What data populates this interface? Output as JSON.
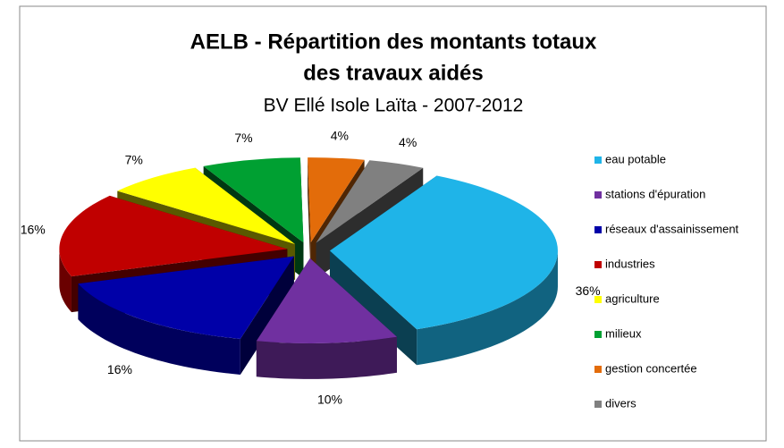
{
  "chart_data": {
    "type": "pie3d",
    "title": [
      "AELB - Répartition des montants totaux",
      "des travaux aidés"
    ],
    "subtitle": "BV Ellé Isole Laïta - 2007-2012",
    "categories": [
      "eau potable",
      "stations d'épuration",
      "réseaux d'assainissement",
      "industries",
      "agriculture",
      "milieux",
      "gestion concertée",
      "divers"
    ],
    "values": [
      36,
      10,
      16,
      16,
      7,
      7,
      4,
      4
    ],
    "value_labels": [
      "36%",
      "10%",
      "16%",
      "16%",
      "7%",
      "7%",
      "4%",
      "4%"
    ],
    "colors": [
      "#1fb4e8",
      "#7030a0",
      "#0000a8",
      "#c00000",
      "#ffff00",
      "#00a032",
      "#e36c0a",
      "#808080"
    ],
    "legend": "right"
  }
}
